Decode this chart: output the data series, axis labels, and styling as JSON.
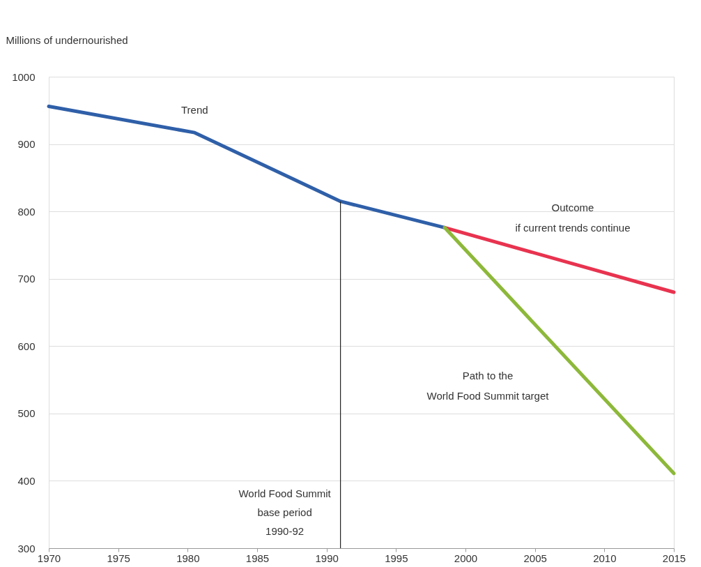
{
  "chart_data": {
    "type": "line",
    "ylabel": "Millions of undernourished",
    "xlim": [
      1970,
      2015
    ],
    "xticks": [
      1970,
      1975,
      1980,
      1985,
      1990,
      1995,
      2000,
      2005,
      2010,
      2015
    ],
    "ylim": [
      300,
      1000
    ],
    "yticks": [
      300,
      400,
      500,
      600,
      700,
      800,
      900,
      1000
    ],
    "grid": "y",
    "legend": false,
    "marker": "none",
    "line_style": "solid",
    "series": [
      {
        "name": "Trend",
        "color": "#2f5fa8",
        "x": [
          1970,
          1980.5,
          1991,
          1998.5
        ],
        "values": [
          956,
          917,
          815,
          776
        ]
      },
      {
        "name": "Outcome\nif current trends continue",
        "color": "#e8334f",
        "x": [
          1998.5,
          2015
        ],
        "values": [
          776,
          680
        ]
      },
      {
        "name": "Path to the\nWorld Food Summit target",
        "color": "#8db83a",
        "x": [
          1998.5,
          2015
        ],
        "values": [
          776,
          411
        ]
      }
    ],
    "ref_lines": [
      {
        "axis": "x",
        "value": 1991,
        "label": "World Food Summit\nbase period\n1990-92",
        "color": "#222222"
      }
    ]
  }
}
